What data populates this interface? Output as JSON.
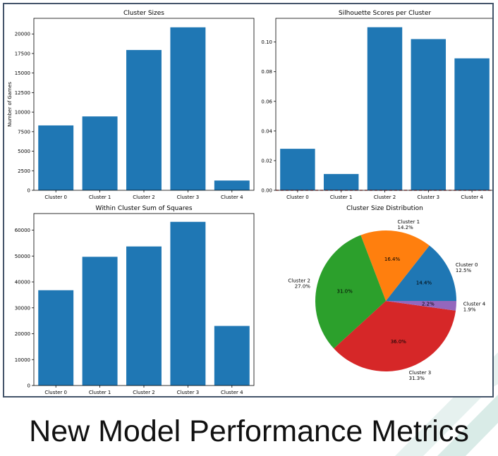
{
  "slide": {
    "title": "New Model Performance Metrics"
  },
  "colors": {
    "bar": "#1f77b4",
    "frame": "#44546a",
    "dashed_line": "#d62728",
    "decor": "#e6f1ef"
  },
  "chart_data": [
    {
      "type": "bar",
      "title": "Cluster Sizes",
      "categories": [
        "Cluster 0",
        "Cluster 1",
        "Cluster 2",
        "Cluster 3",
        "Cluster 4"
      ],
      "values": [
        8300,
        9450,
        17950,
        20850,
        1250
      ],
      "ylabel": "Number of Games",
      "ylim": [
        0,
        22000
      ],
      "yticks": [
        0,
        2500,
        5000,
        7500,
        10000,
        12500,
        15000,
        17500,
        20000
      ],
      "ytick_labels": [
        "0",
        "2500",
        "5000",
        "7500",
        "10000",
        "12500",
        "15000",
        "17500",
        "20000"
      ],
      "grid": false
    },
    {
      "type": "bar",
      "title": "Silhouette Scores per Cluster",
      "categories": [
        "Cluster 0",
        "Cluster 1",
        "Cluster 2",
        "Cluster 3",
        "Cluster 4"
      ],
      "values": [
        0.028,
        0.011,
        0.11,
        0.102,
        0.089
      ],
      "ylim": [
        0,
        0.116
      ],
      "yticks": [
        0,
        0.02,
        0.04,
        0.06,
        0.08,
        0.1
      ],
      "ytick_labels": [
        "0.00",
        "0.02",
        "0.04",
        "0.06",
        "0.08",
        "0.10"
      ],
      "hline": {
        "y": 0,
        "style": "dashed",
        "color": "#d62728"
      },
      "grid": false
    },
    {
      "type": "bar",
      "title": "Within Cluster Sum of Squares",
      "categories": [
        "Cluster 0",
        "Cluster 1",
        "Cluster 2",
        "Cluster 3",
        "Cluster 4"
      ],
      "values": [
        36800,
        49700,
        53700,
        63200,
        23000
      ],
      "ylim": [
        0,
        66400
      ],
      "yticks": [
        0,
        10000,
        20000,
        30000,
        40000,
        50000,
        60000
      ],
      "ytick_labels": [
        "0",
        "10000",
        "20000",
        "30000",
        "40000",
        "50000",
        "60000"
      ],
      "grid": false
    },
    {
      "type": "pie",
      "title": "Cluster Size Distribution",
      "slices": [
        {
          "label": "Cluster 0",
          "percent_label": "12.5%",
          "inner_label": "14.4%",
          "value": 14.4,
          "color": "#1f77b4"
        },
        {
          "label": "Cluster 1",
          "percent_label": "14.2%",
          "inner_label": "16.4%",
          "value": 16.4,
          "color": "#ff7f0e"
        },
        {
          "label": "Cluster 2",
          "percent_label": "27.0%",
          "inner_label": "31.0%",
          "value": 31.0,
          "color": "#2ca02c"
        },
        {
          "label": "Cluster 3",
          "percent_label": "31.3%",
          "inner_label": "36.0%",
          "value": 36.0,
          "color": "#d62728"
        },
        {
          "label": "Cluster 4",
          "percent_label": "1.9%",
          "inner_label": "2.2%",
          "value": 2.2,
          "color": "#9467bd"
        }
      ]
    }
  ]
}
